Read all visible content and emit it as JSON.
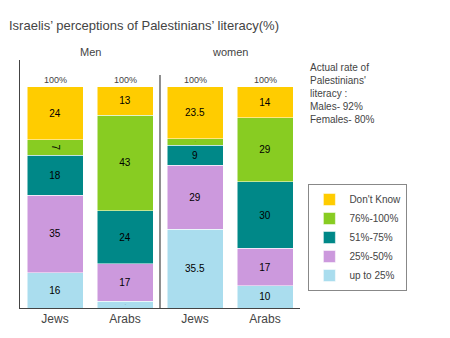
{
  "chart_data": {
    "type": "bar",
    "title": "Israelis’ perceptions of Palestinians’ literacy(%)",
    "categories": [
      "Jews",
      "Arabs",
      "Jews",
      "Arabs"
    ],
    "group_labels": [
      "Men",
      "women"
    ],
    "series": [
      {
        "name": "up to 25%",
        "color": "#AADDEE",
        "values": [
          16,
          3,
          35.5,
          10
        ]
      },
      {
        "name": "25%-50%",
        "color": "#CC99DD",
        "values": [
          35,
          17,
          29,
          17
        ]
      },
      {
        "name": "51%-75%",
        "color": "#008888",
        "values": [
          18,
          24,
          9,
          30
        ]
      },
      {
        "name": "76%-100%",
        "color": "#88CC22",
        "values": [
          7,
          43,
          3,
          29
        ]
      },
      {
        "name": "Don't Know",
        "color": "#FFCC00",
        "values": [
          24,
          13,
          23.5,
          14
        ]
      }
    ],
    "total_labels": [
      "100%",
      "100%",
      "100%",
      "100%"
    ],
    "annotations": [
      "Actual rate of\nPalestinians'\nliteracy :\nMales- 92%\nFemales- 80%"
    ],
    "ylim": [
      0,
      112
    ],
    "stacked": true,
    "data_labels": true,
    "tick_labels": "x",
    "grid": false,
    "legend": "right"
  }
}
